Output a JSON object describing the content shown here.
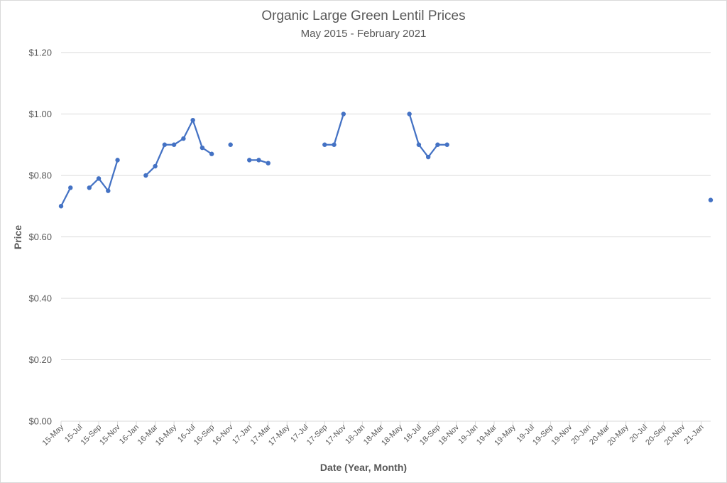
{
  "chart_data": {
    "type": "line",
    "title": "Organic Large Green Lentil Prices",
    "subtitle": "May 2015 - February 2021",
    "xlabel": "Date (Year, Month)",
    "ylabel": "Price",
    "ylim": [
      0,
      1.2
    ],
    "yticks": [
      "$0.00",
      "$0.20",
      "$0.40",
      "$0.60",
      "$0.80",
      "$1.00",
      "$1.20"
    ],
    "grid": true,
    "legend": "none",
    "series_color": "#4472C4",
    "x_tick_labels": [
      "15-May",
      "15-Jul",
      "15-Sep",
      "15-Nov",
      "16-Jan",
      "16-Mar",
      "16-May",
      "16-Jul",
      "16-Sep",
      "16-Nov",
      "17-Jan",
      "17-Mar",
      "17-May",
      "17-Jul",
      "17-Sep",
      "17-Nov",
      "18-Jan",
      "18-Mar",
      "18-May",
      "18-Jul",
      "18-Sep",
      "18-Nov",
      "19-Jan",
      "19-Mar",
      "19-May",
      "19-Jul",
      "19-Sep",
      "19-Nov",
      "20-Jan",
      "20-Mar",
      "20-May",
      "20-Jul",
      "20-Sep",
      "20-Nov",
      "21-Jan"
    ],
    "x": [
      "15-May",
      "15-Jun",
      "15-Jul",
      "15-Aug",
      "15-Sep",
      "15-Oct",
      "15-Nov",
      "15-Dec",
      "16-Jan",
      "16-Feb",
      "16-Mar",
      "16-Apr",
      "16-May",
      "16-Jun",
      "16-Jul",
      "16-Aug",
      "16-Sep",
      "16-Oct",
      "16-Nov",
      "16-Dec",
      "17-Jan",
      "17-Feb",
      "17-Mar",
      "17-Apr",
      "17-May",
      "17-Jun",
      "17-Jul",
      "17-Aug",
      "17-Sep",
      "17-Oct",
      "17-Nov",
      "17-Dec",
      "18-Jan",
      "18-Feb",
      "18-Mar",
      "18-Apr",
      "18-May",
      "18-Jun",
      "18-Jul",
      "18-Aug",
      "18-Sep",
      "18-Oct",
      "18-Nov",
      "18-Dec",
      "19-Jan",
      "19-Feb",
      "19-Mar",
      "19-Apr",
      "19-May",
      "19-Jun",
      "19-Jul",
      "19-Aug",
      "19-Sep",
      "19-Oct",
      "19-Nov",
      "19-Dec",
      "20-Jan",
      "20-Feb",
      "20-Mar",
      "20-Apr",
      "20-May",
      "20-Jun",
      "20-Jul",
      "20-Aug",
      "20-Sep",
      "20-Oct",
      "20-Nov",
      "20-Dec",
      "21-Jan",
      "21-Feb"
    ],
    "series": [
      {
        "values": [
          0.7,
          0.76,
          null,
          0.76,
          0.79,
          0.75,
          0.85,
          null,
          null,
          0.8,
          0.83,
          0.9,
          0.9,
          0.92,
          0.98,
          0.89,
          0.87,
          null,
          0.9,
          null,
          0.85,
          0.85,
          0.84,
          null,
          null,
          null,
          null,
          null,
          0.9,
          0.9,
          1.0,
          null,
          null,
          null,
          null,
          null,
          null,
          1.0,
          0.9,
          0.86,
          0.9,
          0.9,
          null,
          null,
          null,
          null,
          null,
          null,
          null,
          null,
          null,
          null,
          null,
          null,
          null,
          null,
          null,
          null,
          null,
          null,
          null,
          null,
          null,
          null,
          null,
          null,
          null,
          null,
          null,
          0.72
        ]
      }
    ]
  }
}
